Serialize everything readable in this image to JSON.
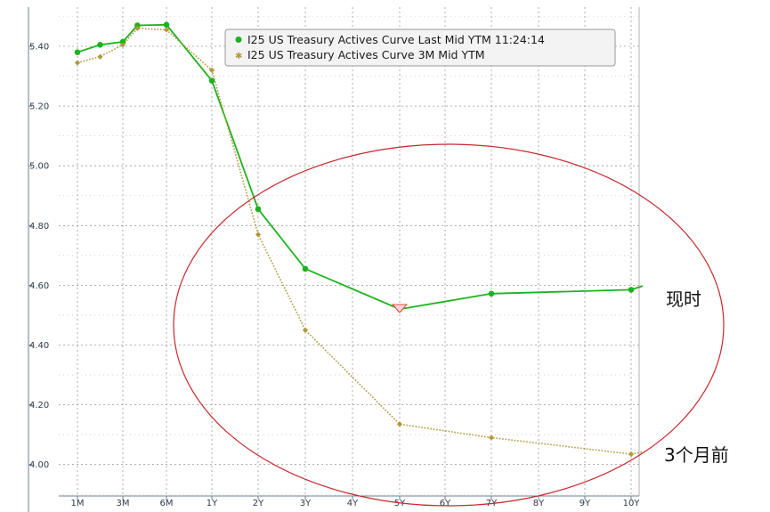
{
  "chart_data": {
    "type": "line",
    "title": "",
    "xlabel": "",
    "ylabel": "",
    "ylim": [
      3.9,
      5.54
    ],
    "yticks": [
      "5.40",
      "5.20",
      "5.00",
      "4.80",
      "4.60",
      "4.40",
      "4.20",
      "4.00"
    ],
    "xticks": [
      "1M",
      "3M",
      "6M",
      "1Y",
      "2Y",
      "3Y",
      "4Y",
      "5Y",
      "6Y",
      "7Y",
      "8Y",
      "9Y",
      "10Y"
    ],
    "grid": true,
    "legend_position": "top-right",
    "series": [
      {
        "name": "I25 US Treasury Actives Curve Last Mid YTM 11:24:14",
        "color": "#1db21d",
        "style": "solid",
        "x_months": [
          1,
          2,
          3,
          4,
          6,
          12,
          24,
          36,
          60,
          84,
          120,
          123
        ],
        "values": [
          5.38,
          5.405,
          5.415,
          5.47,
          5.472,
          5.285,
          4.855,
          4.655,
          4.52,
          4.572,
          4.585,
          4.598
        ]
      },
      {
        "name": "I25 US Treasury Actives Curve 3M Mid YTM",
        "color": "#b09a3a",
        "style": "dotted",
        "x_months": [
          1,
          2,
          3,
          4,
          6,
          12,
          24,
          36,
          60,
          84,
          120,
          123
        ],
        "values": [
          5.345,
          5.365,
          5.405,
          5.46,
          5.455,
          5.32,
          4.77,
          4.45,
          4.135,
          4.09,
          4.035,
          4.042
        ]
      }
    ],
    "annotations": {
      "now_label": "现时",
      "prev_label": "3个月前"
    }
  },
  "colors": {
    "axis": "#6f7f8f",
    "grid": "#9a9a9a",
    "ellipse": "#c8282e",
    "marker_5y": "#e84848"
  }
}
